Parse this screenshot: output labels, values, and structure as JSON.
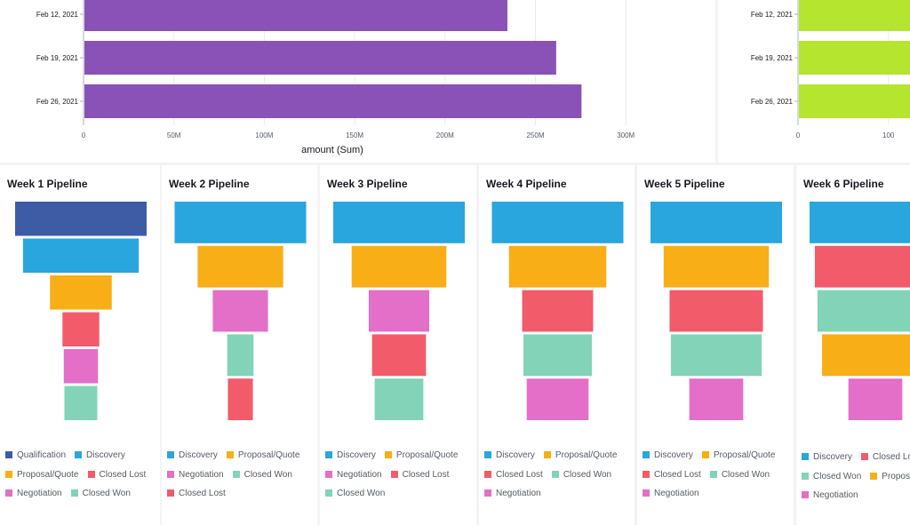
{
  "colors": {
    "Qualification": "#3e5ca6",
    "Discovery": "#29a6dd",
    "Proposal/Quote": "#f8ae16",
    "Closed Lost": "#f25c6a",
    "Negotiation": "#e36fc9",
    "Closed Won": "#82d3b7"
  },
  "chart_data": [
    {
      "type": "bar",
      "orientation": "horizontal",
      "categories": [
        "Feb 12, 2021",
        "Feb 19, 2021",
        "Feb 26, 2021"
      ],
      "values": [
        234000000,
        261000000,
        275000000
      ],
      "xlabel": "amount (Sum)",
      "xlim": [
        0,
        300000000
      ],
      "x_ticks": [
        "0",
        "50M",
        "100M",
        "150M",
        "200M",
        "250M",
        "300M"
      ],
      "color": "#8a52b6",
      "grid": true
    },
    {
      "type": "bar",
      "orientation": "horizontal",
      "categories": [
        "Feb 12, 2021",
        "Feb 19, 2021",
        "Feb 26, 2021"
      ],
      "values": [
        130,
        130,
        130
      ],
      "x_ticks": [
        "0",
        "100"
      ],
      "color": "#b5e52f",
      "grid": true
    },
    {
      "type": "funnel",
      "title": "Week 1 Pipeline",
      "stages": [
        "Qualification",
        "Discovery",
        "Proposal/Quote",
        "Closed Lost",
        "Negotiation",
        "Closed Won"
      ],
      "values": [
        100,
        88,
        47,
        28,
        26,
        25
      ],
      "legend": [
        "Qualification",
        "Discovery",
        "Proposal/Quote",
        "Closed Lost",
        "Negotiation",
        "Closed Won"
      ]
    },
    {
      "type": "funnel",
      "title": "Week 2 Pipeline",
      "stages": [
        "Discovery",
        "Proposal/Quote",
        "Negotiation",
        "Closed Won",
        "Closed Lost"
      ],
      "values": [
        100,
        65,
        42,
        20,
        19
      ],
      "legend": [
        "Discovery",
        "Proposal/Quote",
        "Negotiation",
        "Closed Won",
        "Closed Lost"
      ]
    },
    {
      "type": "funnel",
      "title": "Week 3 Pipeline",
      "stages": [
        "Discovery",
        "Proposal/Quote",
        "Negotiation",
        "Closed Lost",
        "Closed Won"
      ],
      "values": [
        100,
        72,
        46,
        41,
        37
      ],
      "legend": [
        "Discovery",
        "Proposal/Quote",
        "Negotiation",
        "Closed Lost",
        "Closed Won"
      ]
    },
    {
      "type": "funnel",
      "title": "Week 4 Pipeline",
      "stages": [
        "Discovery",
        "Proposal/Quote",
        "Closed Lost",
        "Closed Won",
        "Negotiation"
      ],
      "values": [
        100,
        74,
        54,
        52,
        47
      ],
      "legend": [
        "Discovery",
        "Proposal/Quote",
        "Closed Lost",
        "Closed Won",
        "Negotiation"
      ]
    },
    {
      "type": "funnel",
      "title": "Week 5 Pipeline",
      "stages": [
        "Discovery",
        "Proposal/Quote",
        "Closed Lost",
        "Closed Won",
        "Negotiation"
      ],
      "values": [
        100,
        80,
        71,
        69,
        41
      ],
      "legend": [
        "Discovery",
        "Proposal/Quote",
        "Closed Lost",
        "Closed Won",
        "Negotiation"
      ]
    },
    {
      "type": "funnel",
      "title": "Week 6 Pipeline",
      "stages": [
        "Discovery",
        "Closed Lost",
        "Closed Won",
        "Proposal/Quote",
        "Negotiation"
      ],
      "values": [
        100,
        92,
        88,
        81,
        41
      ],
      "legend": [
        "Discovery",
        "Closed Lost",
        "Closed Won",
        "Proposal/Quote",
        "Negotiation"
      ]
    }
  ]
}
